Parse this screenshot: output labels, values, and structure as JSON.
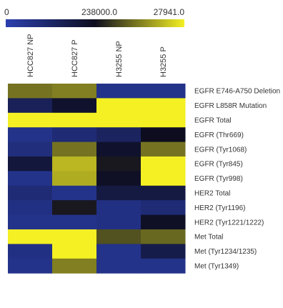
{
  "chart_data": {
    "type": "heatmap",
    "title": "",
    "xlabel": "",
    "ylabel": "",
    "color_scale": {
      "low_label": "0",
      "mid_label": "238000.0",
      "high_label": "27941.0",
      "colors": [
        "#2b3fae",
        "#0d0d1f",
        "#f4f023"
      ]
    },
    "columns": [
      "HCC827 NP",
      "HCC827 P",
      "H3255 NP",
      "H3255 P"
    ],
    "rows": [
      "EGFR E746-A750 Deletion",
      "EGFR L858R Mutation",
      "EGFR Total",
      "EGFR (Thr669)",
      "EGFR (Tyr1068)",
      "EGFR (Tyr845)",
      "EGFR (Tyr998)",
      "HER2 Total",
      "HER2 (Tyr1196)",
      "HER2 (Tyr1221/1222)",
      "Met Total",
      "Met (Tyr1234/1235)",
      "Met (Tyr1349)"
    ],
    "values": [
      [
        0.45,
        0.5,
        -0.75,
        -0.75
      ],
      [
        -0.4,
        -0.1,
        1.0,
        1.0
      ],
      [
        1.0,
        1.0,
        1.0,
        1.0
      ],
      [
        -0.75,
        -0.6,
        -0.45,
        0.0
      ],
      [
        -0.65,
        0.45,
        -0.1,
        0.45
      ],
      [
        -0.2,
        0.75,
        0.05,
        1.0
      ],
      [
        -0.75,
        0.7,
        -0.05,
        1.0
      ],
      [
        -0.6,
        -0.75,
        -0.25,
        -0.25
      ],
      [
        -0.7,
        0.05,
        -0.7,
        -0.6
      ],
      [
        -0.75,
        -0.75,
        -0.7,
        -0.05
      ],
      [
        1.0,
        1.0,
        0.3,
        0.4
      ],
      [
        -0.7,
        1.0,
        -0.75,
        -0.3
      ],
      [
        -0.75,
        0.5,
        -0.75,
        -0.75
      ]
    ]
  }
}
